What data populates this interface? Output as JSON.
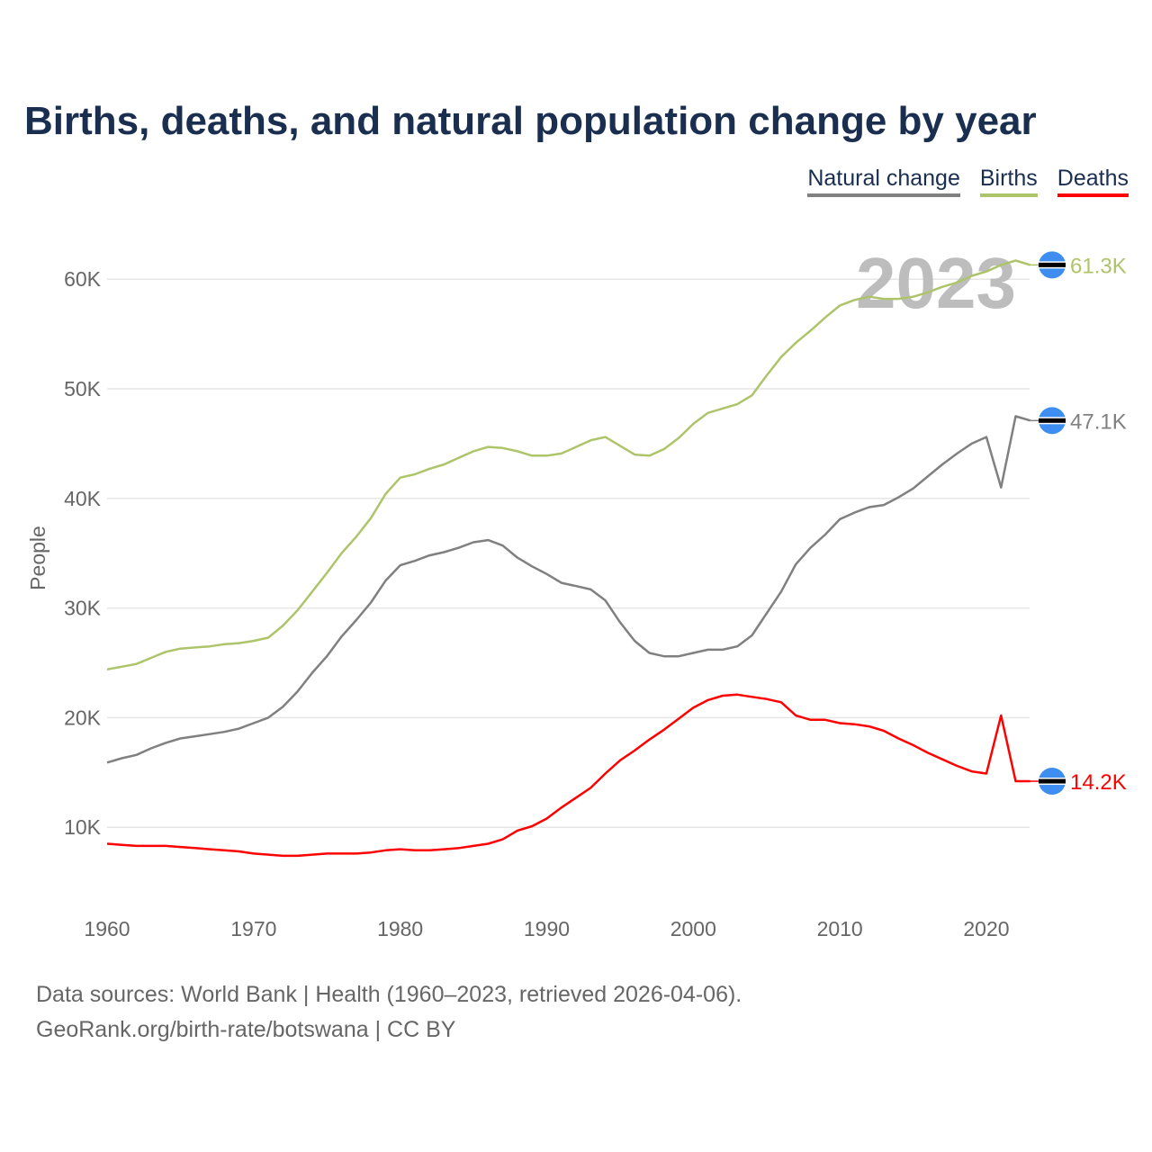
{
  "title": "Births, deaths, and natural population change by year",
  "legend": [
    {
      "label": "Natural change",
      "color": "#808080"
    },
    {
      "label": "Births",
      "color": "#aec46a"
    },
    {
      "label": "Deaths",
      "color": "#ff0000"
    }
  ],
  "footer": {
    "line1": "Data sources: World Bank | Health (1960–2023, retrieved 2026-04-06).",
    "line2": "GeoRank.org/birth-rate/botswana | CC BY"
  },
  "chart_data": {
    "type": "line",
    "title": "Births, deaths, and natural population change by year",
    "xlabel": "",
    "ylabel": "People",
    "xlim": [
      1960,
      2023
    ],
    "ylim": [
      0,
      60000
    ],
    "grid": true,
    "legend_position": "top-right",
    "current_year_label": "2023",
    "x_ticks": [
      1960,
      1970,
      1980,
      1990,
      2000,
      2010,
      2020
    ],
    "y_ticks": [
      {
        "v": 10000,
        "label": "10K"
      },
      {
        "v": 20000,
        "label": "20K"
      },
      {
        "v": 30000,
        "label": "30K"
      },
      {
        "v": 40000,
        "label": "40K"
      },
      {
        "v": 50000,
        "label": "50K"
      },
      {
        "v": 60000,
        "label": "60K"
      }
    ],
    "x": [
      1960,
      1961,
      1962,
      1963,
      1964,
      1965,
      1966,
      1967,
      1968,
      1969,
      1970,
      1971,
      1972,
      1973,
      1974,
      1975,
      1976,
      1977,
      1978,
      1979,
      1980,
      1981,
      1982,
      1983,
      1984,
      1985,
      1986,
      1987,
      1988,
      1989,
      1990,
      1991,
      1992,
      1993,
      1994,
      1995,
      1996,
      1997,
      1998,
      1999,
      2000,
      2001,
      2002,
      2003,
      2004,
      2005,
      2006,
      2007,
      2008,
      2009,
      2010,
      2011,
      2012,
      2013,
      2014,
      2015,
      2016,
      2017,
      2018,
      2019,
      2020,
      2021,
      2022,
      2023
    ],
    "series": [
      {
        "name": "Natural change",
        "color": "#808080",
        "end_label": "47.1K",
        "values": [
          15900,
          16300,
          16600,
          17200,
          17700,
          18100,
          18300,
          18500,
          18700,
          19000,
          19500,
          20000,
          21000,
          22400,
          24100,
          25600,
          27400,
          28900,
          30500,
          32500,
          33900,
          34300,
          34800,
          35100,
          35500,
          36000,
          36200,
          35700,
          34600,
          33800,
          33100,
          32300,
          32000,
          31700,
          30700,
          28700,
          27000,
          25900,
          25600,
          25600,
          25900,
          26200,
          26200,
          26500,
          27500,
          29500,
          31500,
          34000,
          35500,
          36700,
          38100,
          38700,
          39200,
          39400,
          40100,
          40900,
          42000,
          43100,
          44100,
          45000,
          45600,
          41000,
          47500,
          47100
        ]
      },
      {
        "name": "Births",
        "color": "#aec46a",
        "end_label": "61.3K",
        "values": [
          24400,
          24650,
          24900,
          25450,
          26000,
          26300,
          26400,
          26500,
          26700,
          26800,
          27000,
          27300,
          28400,
          29800,
          31500,
          33200,
          35000,
          36500,
          38200,
          40400,
          41900,
          42200,
          42700,
          43100,
          43700,
          44300,
          44700,
          44600,
          44300,
          43900,
          43900,
          44100,
          44700,
          45300,
          45600,
          44800,
          44000,
          43900,
          44500,
          45500,
          46800,
          47800,
          48200,
          48600,
          49400,
          51200,
          52900,
          54200,
          55300,
          56500,
          57600,
          58100,
          58400,
          58200,
          58200,
          58400,
          58800,
          59300,
          59700,
          60300,
          60700,
          61300,
          61700,
          61300
        ]
      },
      {
        "name": "Deaths",
        "color": "#ff0000",
        "end_label": "14.2K",
        "values": [
          8500,
          8400,
          8300,
          8300,
          8300,
          8200,
          8100,
          8000,
          7900,
          7800,
          7600,
          7500,
          7400,
          7400,
          7500,
          7600,
          7600,
          7600,
          7700,
          7900,
          8000,
          7900,
          7900,
          8000,
          8100,
          8300,
          8500,
          8900,
          9700,
          10100,
          10800,
          11800,
          12700,
          13600,
          14900,
          16100,
          17000,
          18000,
          18900,
          19900,
          20900,
          21600,
          22000,
          22100,
          21900,
          21700,
          21400,
          20200,
          19800,
          19800,
          19500,
          19400,
          19200,
          18800,
          18100,
          17500,
          16800,
          16200,
          15600,
          15100,
          14900,
          20200,
          14200,
          14200
        ]
      }
    ]
  }
}
